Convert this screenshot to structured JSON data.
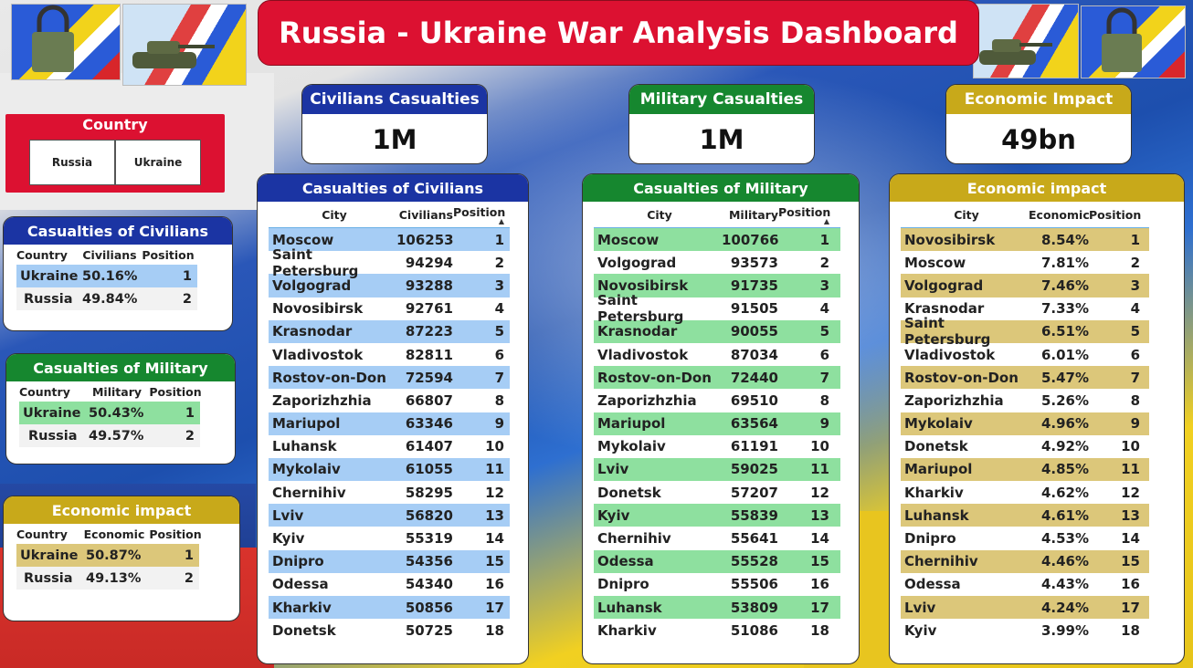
{
  "title": "Russia - Ukraine War Analysis Dashboard",
  "kpis": {
    "civilians": {
      "label": "Civilians Casualties",
      "value": "1M"
    },
    "military": {
      "label": "Military Casualties",
      "value": "1M"
    },
    "economic": {
      "label": "Economic Impact",
      "value": "49bn"
    }
  },
  "slicer": {
    "title": "Country",
    "options": [
      "Russia",
      "Ukraine"
    ]
  },
  "small_civ": {
    "title": "Casualties of Civilians",
    "cols": [
      "Country",
      "Civilians",
      "Position"
    ],
    "rows": [
      [
        "Ukraine",
        "50.16%",
        "1"
      ],
      [
        "Russia",
        "49.84%",
        "2"
      ]
    ]
  },
  "small_mil": {
    "title": "Casualties of Military",
    "cols": [
      "Country",
      "Military",
      "Position"
    ],
    "rows": [
      [
        "Ukraine",
        "50.43%",
        "1"
      ],
      [
        "Russia",
        "49.57%",
        "2"
      ]
    ]
  },
  "small_eco": {
    "title": "Economic impact",
    "cols": [
      "Country",
      "Economic",
      "Position"
    ],
    "rows": [
      [
        "Ukraine",
        "50.87%",
        "1"
      ],
      [
        "Russia",
        "49.13%",
        "2"
      ]
    ]
  },
  "big_civ": {
    "title": "Casualties of Civilians",
    "cols": [
      "City",
      "Civilians",
      "Position"
    ],
    "rows": [
      [
        "Moscow",
        "106253",
        "1"
      ],
      [
        "Saint Petersburg",
        "94294",
        "2"
      ],
      [
        "Volgograd",
        "93288",
        "3"
      ],
      [
        "Novosibirsk",
        "92761",
        "4"
      ],
      [
        "Krasnodar",
        "87223",
        "5"
      ],
      [
        "Vladivostok",
        "82811",
        "6"
      ],
      [
        "Rostov-on-Don",
        "72594",
        "7"
      ],
      [
        "Zaporizhzhia",
        "66807",
        "8"
      ],
      [
        "Mariupol",
        "63346",
        "9"
      ],
      [
        "Luhansk",
        "61407",
        "10"
      ],
      [
        "Mykolaiv",
        "61055",
        "11"
      ],
      [
        "Chernihiv",
        "58295",
        "12"
      ],
      [
        "Lviv",
        "56820",
        "13"
      ],
      [
        "Kyiv",
        "55319",
        "14"
      ],
      [
        "Dnipro",
        "54356",
        "15"
      ],
      [
        "Odessa",
        "54340",
        "16"
      ],
      [
        "Kharkiv",
        "50856",
        "17"
      ],
      [
        "Donetsk",
        "50725",
        "18"
      ]
    ]
  },
  "big_mil": {
    "title": "Casualties of Military",
    "cols": [
      "City",
      "Military",
      "Position"
    ],
    "rows": [
      [
        "Moscow",
        "100766",
        "1"
      ],
      [
        "Volgograd",
        "93573",
        "2"
      ],
      [
        "Novosibirsk",
        "91735",
        "3"
      ],
      [
        "Saint Petersburg",
        "91505",
        "4"
      ],
      [
        "Krasnodar",
        "90055",
        "5"
      ],
      [
        "Vladivostok",
        "87034",
        "6"
      ],
      [
        "Rostov-on-Don",
        "72440",
        "7"
      ],
      [
        "Zaporizhzhia",
        "69510",
        "8"
      ],
      [
        "Mariupol",
        "63564",
        "9"
      ],
      [
        "Mykolaiv",
        "61191",
        "10"
      ],
      [
        "Lviv",
        "59025",
        "11"
      ],
      [
        "Donetsk",
        "57207",
        "12"
      ],
      [
        "Kyiv",
        "55839",
        "13"
      ],
      [
        "Chernihiv",
        "55641",
        "14"
      ],
      [
        "Odessa",
        "55528",
        "15"
      ],
      [
        "Dnipro",
        "55506",
        "16"
      ],
      [
        "Luhansk",
        "53809",
        "17"
      ],
      [
        "Kharkiv",
        "51086",
        "18"
      ]
    ]
  },
  "big_eco": {
    "title": "Economic impact",
    "cols": [
      "City",
      "Economic",
      "Position"
    ],
    "rows": [
      [
        "Novosibirsk",
        "8.54%",
        "1"
      ],
      [
        "Moscow",
        "7.81%",
        "2"
      ],
      [
        "Volgograd",
        "7.46%",
        "3"
      ],
      [
        "Krasnodar",
        "7.33%",
        "4"
      ],
      [
        "Saint Petersburg",
        "6.51%",
        "5"
      ],
      [
        "Vladivostok",
        "6.01%",
        "6"
      ],
      [
        "Rostov-on-Don",
        "5.47%",
        "7"
      ],
      [
        "Zaporizhzhia",
        "5.26%",
        "8"
      ],
      [
        "Mykolaiv",
        "4.96%",
        "9"
      ],
      [
        "Donetsk",
        "4.92%",
        "10"
      ],
      [
        "Mariupol",
        "4.85%",
        "11"
      ],
      [
        "Kharkiv",
        "4.62%",
        "12"
      ],
      [
        "Luhansk",
        "4.61%",
        "13"
      ],
      [
        "Dnipro",
        "4.53%",
        "14"
      ],
      [
        "Chernihiv",
        "4.46%",
        "15"
      ],
      [
        "Odessa",
        "4.43%",
        "16"
      ],
      [
        "Lviv",
        "4.24%",
        "17"
      ],
      [
        "Kyiv",
        "3.99%",
        "18"
      ]
    ]
  },
  "colors": {
    "blue": "#1b34a3",
    "green": "#16872f",
    "gold": "#c8a91a",
    "red": "#dc1131"
  }
}
